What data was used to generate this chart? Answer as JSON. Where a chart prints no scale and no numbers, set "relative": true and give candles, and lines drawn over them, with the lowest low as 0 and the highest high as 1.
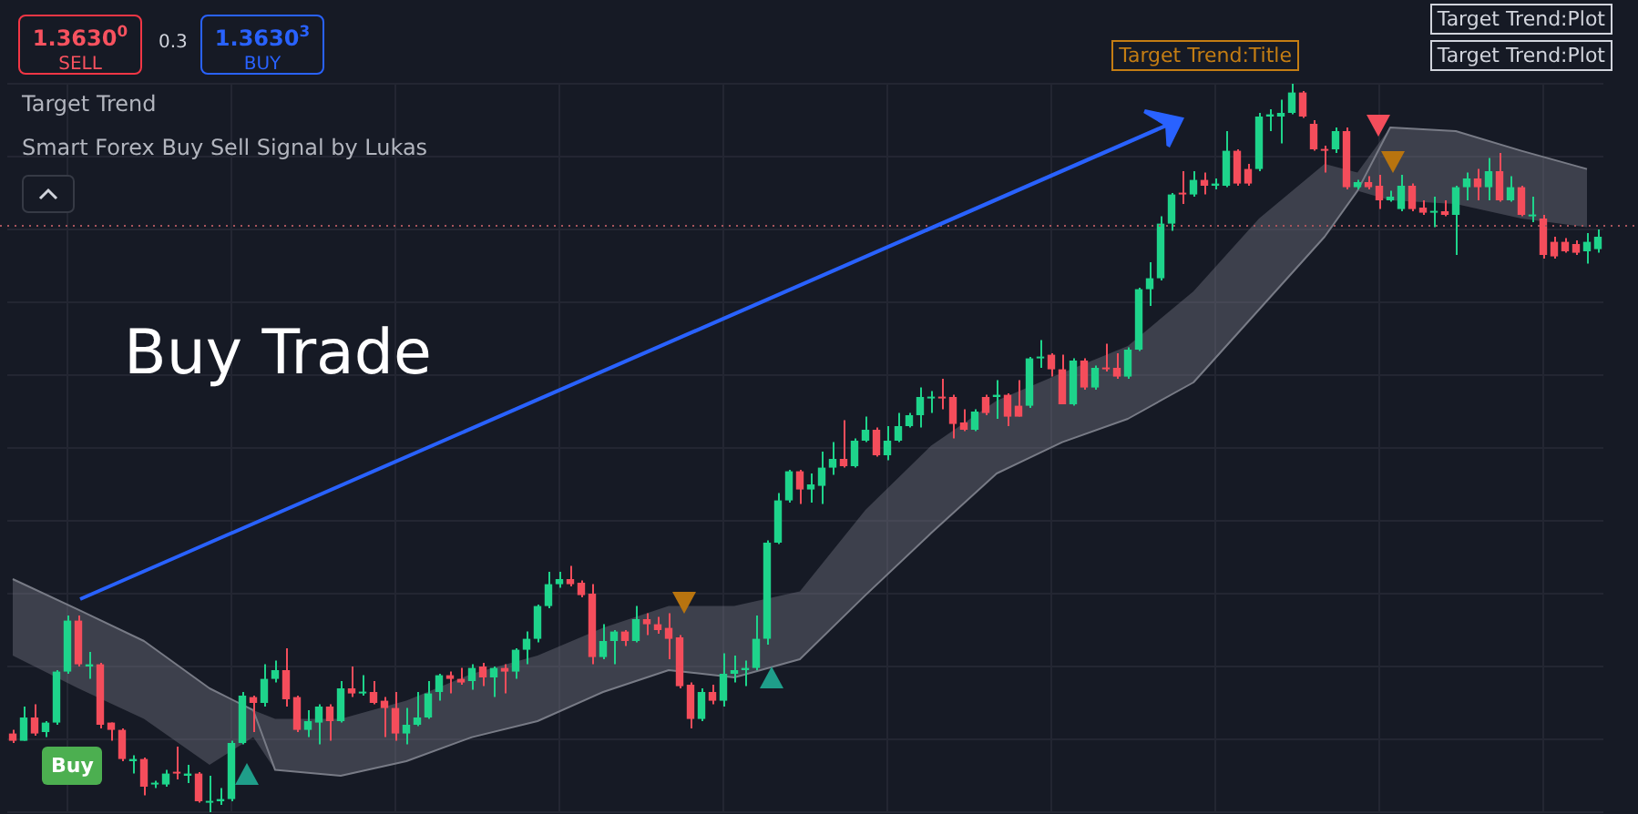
{
  "chart_data": {
    "type": "candlestick",
    "relative": true,
    "grid": true,
    "tick_labels": false,
    "categories": [
      null,
      null,
      null,
      null,
      null,
      null,
      null,
      null,
      null,
      null,
      null,
      null,
      null,
      null,
      null,
      null,
      null,
      null,
      null,
      null,
      null,
      null,
      null,
      null,
      null,
      null,
      null,
      null,
      null,
      null,
      null,
      null,
      null,
      null,
      null,
      null,
      null,
      null,
      null,
      null,
      null,
      null,
      null,
      null,
      null,
      null,
      null,
      null,
      null,
      null,
      null,
      null,
      null,
      null,
      null,
      null,
      null,
      null,
      null,
      null,
      null,
      null,
      null,
      null,
      null,
      null,
      null,
      null,
      null,
      null,
      null,
      null,
      null,
      null,
      null,
      null,
      null,
      null,
      null,
      null,
      null,
      null,
      null,
      null,
      null,
      null,
      null,
      null,
      null,
      null,
      null,
      null,
      null,
      null,
      null,
      null,
      null,
      null,
      null,
      null,
      null,
      null,
      null,
      null,
      null,
      null,
      null,
      null,
      null,
      null,
      null,
      null,
      null,
      null,
      null,
      null,
      null,
      null,
      null,
      null,
      null,
      null,
      null,
      null,
      null,
      null,
      null,
      null,
      null,
      null,
      null,
      null,
      null,
      null,
      null,
      null,
      null,
      null,
      null,
      null,
      null,
      null,
      null,
      null,
      null,
      null
    ],
    "ohlc": [
      [
        0.108,
        0.113,
        0.095,
        0.098
      ],
      [
        0.098,
        0.145,
        0.098,
        0.13
      ],
      [
        0.13,
        0.148,
        0.105,
        0.108
      ],
      [
        0.11,
        0.125,
        0.103,
        0.123
      ],
      [
        0.123,
        0.195,
        0.12,
        0.193
      ],
      [
        0.193,
        0.27,
        0.19,
        0.263
      ],
      [
        0.263,
        0.27,
        0.2,
        0.203
      ],
      [
        0.2,
        0.22,
        0.183,
        0.203
      ],
      [
        0.203,
        0.205,
        0.115,
        0.12
      ],
      [
        0.123,
        0.123,
        0.098,
        0.113
      ],
      [
        0.113,
        0.115,
        0.07,
        0.073
      ],
      [
        0.07,
        0.078,
        0.053,
        0.073
      ],
      [
        0.073,
        0.075,
        0.023,
        0.035
      ],
      [
        0.038,
        0.043,
        0.033,
        0.04
      ],
      [
        0.038,
        0.058,
        0.035,
        0.053
      ],
      [
        0.055,
        0.09,
        0.045,
        0.053
      ],
      [
        0.05,
        0.065,
        0.04,
        0.053
      ],
      [
        0.053,
        0.055,
        0.013,
        0.015
      ],
      [
        0.013,
        0.05,
        0,
        0.015
      ],
      [
        0.015,
        0.033,
        0.01,
        0.018
      ],
      [
        0.018,
        0.098,
        0.015,
        0.095
      ],
      [
        0.095,
        0.165,
        0.093,
        0.16
      ],
      [
        0.158,
        0.16,
        0.11,
        0.15
      ],
      [
        0.15,
        0.203,
        0.145,
        0.183
      ],
      [
        0.183,
        0.208,
        0.178,
        0.195
      ],
      [
        0.195,
        0.225,
        0.145,
        0.155
      ],
      [
        0.158,
        0.16,
        0.11,
        0.113
      ],
      [
        0.113,
        0.14,
        0.103,
        0.125
      ],
      [
        0.123,
        0.148,
        0.093,
        0.145
      ],
      [
        0.145,
        0.148,
        0.098,
        0.125
      ],
      [
        0.125,
        0.18,
        0.123,
        0.17
      ],
      [
        0.17,
        0.2,
        0.158,
        0.163
      ],
      [
        0.163,
        0.188,
        0.16,
        0.165
      ],
      [
        0.165,
        0.18,
        0.148,
        0.15
      ],
      [
        0.153,
        0.158,
        0.103,
        0.143
      ],
      [
        0.143,
        0.165,
        0.098,
        0.108
      ],
      [
        0.108,
        0.143,
        0.093,
        0.12
      ],
      [
        0.12,
        0.165,
        0.118,
        0.13
      ],
      [
        0.13,
        0.18,
        0.128,
        0.163
      ],
      [
        0.165,
        0.19,
        0.153,
        0.188
      ],
      [
        0.188,
        0.193,
        0.163,
        0.183
      ],
      [
        0.183,
        0.198,
        0.175,
        0.178
      ],
      [
        0.18,
        0.203,
        0.168,
        0.198
      ],
      [
        0.2,
        0.205,
        0.173,
        0.185
      ],
      [
        0.185,
        0.2,
        0.158,
        0.198
      ],
      [
        0.198,
        0.203,
        0.163,
        0.193
      ],
      [
        0.193,
        0.225,
        0.183,
        0.223
      ],
      [
        0.223,
        0.248,
        0.203,
        0.238
      ],
      [
        0.238,
        0.285,
        0.233,
        0.283
      ],
      [
        0.283,
        0.33,
        0.28,
        0.313
      ],
      [
        0.313,
        0.33,
        0.308,
        0.32
      ],
      [
        0.32,
        0.338,
        0.31,
        0.313
      ],
      [
        0.315,
        0.318,
        0.295,
        0.298
      ],
      [
        0.3,
        0.313,
        0.203,
        0.213
      ],
      [
        0.213,
        0.258,
        0.21,
        0.235
      ],
      [
        0.235,
        0.25,
        0.203,
        0.248
      ],
      [
        0.248,
        0.25,
        0.228,
        0.235
      ],
      [
        0.235,
        0.283,
        0.233,
        0.265
      ],
      [
        0.265,
        0.273,
        0.243,
        0.258
      ],
      [
        0.258,
        0.268,
        0.245,
        0.25
      ],
      [
        0.253,
        0.273,
        0.21,
        0.238
      ],
      [
        0.24,
        0.243,
        0.17,
        0.173
      ],
      [
        0.175,
        0.178,
        0.115,
        0.128
      ],
      [
        0.128,
        0.17,
        0.125,
        0.165
      ],
      [
        0.165,
        0.175,
        0.148,
        0.153
      ],
      [
        0.153,
        0.218,
        0.145,
        0.19
      ],
      [
        0.19,
        0.215,
        0.178,
        0.195
      ],
      [
        0.195,
        0.208,
        0.173,
        0.198
      ],
      [
        0.198,
        0.27,
        0.195,
        0.238
      ],
      [
        0.238,
        0.373,
        0.23,
        0.37
      ],
      [
        0.37,
        0.438,
        0.368,
        0.428
      ],
      [
        0.428,
        0.47,
        0.425,
        0.468
      ],
      [
        0.468,
        0.47,
        0.423,
        0.443
      ],
      [
        0.443,
        0.465,
        0.425,
        0.45
      ],
      [
        0.448,
        0.495,
        0.423,
        0.473
      ],
      [
        0.473,
        0.508,
        0.463,
        0.485
      ],
      [
        0.485,
        0.538,
        0.473,
        0.475
      ],
      [
        0.475,
        0.513,
        0.473,
        0.51
      ],
      [
        0.51,
        0.543,
        0.508,
        0.525
      ],
      [
        0.525,
        0.528,
        0.488,
        0.49
      ],
      [
        0.49,
        0.53,
        0.483,
        0.51
      ],
      [
        0.51,
        0.548,
        0.508,
        0.53
      ],
      [
        0.53,
        0.548,
        0.528,
        0.545
      ],
      [
        0.545,
        0.583,
        0.528,
        0.57
      ],
      [
        0.568,
        0.578,
        0.548,
        0.57
      ],
      [
        0.57,
        0.595,
        0.553,
        0.568
      ],
      [
        0.57,
        0.573,
        0.513,
        0.533
      ],
      [
        0.535,
        0.553,
        0.523,
        0.525
      ],
      [
        0.525,
        0.553,
        0.523,
        0.55
      ],
      [
        0.57,
        0.573,
        0.545,
        0.548
      ],
      [
        0.57,
        0.593,
        0.54,
        0.573
      ],
      [
        0.573,
        0.575,
        0.53,
        0.543
      ],
      [
        0.558,
        0.593,
        0.543,
        0.543
      ],
      [
        0.558,
        0.625,
        0.555,
        0.623
      ],
      [
        0.623,
        0.648,
        0.61,
        0.625
      ],
      [
        0.628,
        0.63,
        0.598,
        0.608
      ],
      [
        0.608,
        0.628,
        0.56,
        0.56
      ],
      [
        0.56,
        0.623,
        0.558,
        0.62
      ],
      [
        0.62,
        0.623,
        0.58,
        0.583
      ],
      [
        0.583,
        0.613,
        0.58,
        0.61
      ],
      [
        0.61,
        0.643,
        0.605,
        0.608
      ],
      [
        0.61,
        0.63,
        0.595,
        0.598
      ],
      [
        0.598,
        0.638,
        0.595,
        0.635
      ],
      [
        0.635,
        0.72,
        0.633,
        0.718
      ],
      [
        0.718,
        0.755,
        0.695,
        0.733
      ],
      [
        0.733,
        0.818,
        0.73,
        0.808
      ],
      [
        0.808,
        0.85,
        0.798,
        0.848
      ],
      [
        0.85,
        0.88,
        0.835,
        0.848
      ],
      [
        0.848,
        0.88,
        0.845,
        0.868
      ],
      [
        0.868,
        0.878,
        0.848,
        0.86
      ],
      [
        0.86,
        0.87,
        0.855,
        0.863
      ],
      [
        0.86,
        0.935,
        0.858,
        0.908
      ],
      [
        0.908,
        0.91,
        0.86,
        0.863
      ],
      [
        0.883,
        0.89,
        0.86,
        0.863
      ],
      [
        0.883,
        0.96,
        0.88,
        0.955
      ],
      [
        0.955,
        0.965,
        0.935,
        0.958
      ],
      [
        0.955,
        0.978,
        0.918,
        0.96
      ],
      [
        0.96,
        1,
        0.958,
        0.988
      ],
      [
        0.988,
        0.99,
        0.953,
        0.955
      ],
      [
        0.945,
        0.95,
        0.908,
        0.91
      ],
      [
        0.91,
        0.915,
        0.878,
        0.908
      ],
      [
        0.91,
        0.94,
        0.905,
        0.935
      ],
      [
        0.935,
        0.94,
        0.855,
        0.858
      ],
      [
        0.858,
        0.868,
        0.855,
        0.865
      ],
      [
        0.865,
        0.873,
        0.855,
        0.858
      ],
      [
        0.86,
        0.875,
        0.828,
        0.84
      ],
      [
        0.84,
        0.853,
        0.838,
        0.845
      ],
      [
        0.828,
        0.875,
        0.825,
        0.86
      ],
      [
        0.86,
        0.863,
        0.825,
        0.828
      ],
      [
        0.83,
        0.84,
        0.82,
        0.823
      ],
      [
        0.823,
        0.845,
        0.803,
        0.825
      ],
      [
        0.825,
        0.84,
        0.818,
        0.82
      ],
      [
        0.82,
        0.86,
        0.765,
        0.858
      ],
      [
        0.858,
        0.878,
        0.84,
        0.87
      ],
      [
        0.87,
        0.883,
        0.84,
        0.858
      ],
      [
        0.858,
        0.898,
        0.84,
        0.88
      ],
      [
        0.88,
        0.905,
        0.838,
        0.84
      ],
      [
        0.84,
        0.873,
        0.838,
        0.858
      ],
      [
        0.858,
        0.86,
        0.818,
        0.82
      ],
      [
        0.818,
        0.845,
        0.81,
        0.82
      ],
      [
        0.815,
        0.82,
        0.76,
        0.765
      ],
      [
        0.783,
        0.79,
        0.76,
        0.763
      ],
      [
        0.783,
        0.788,
        0.768,
        0.77
      ],
      [
        0.78,
        0.785,
        0.765,
        0.768
      ],
      [
        0.77,
        0.795,
        0.753,
        0.783
      ],
      [
        0.773,
        0.8,
        0.768,
        0.79
      ]
    ],
    "colors": [
      "#f44d5b",
      "#1ed48b",
      "#f44d5b",
      "#1ed48b",
      "#1ed48b",
      "#1ed48b",
      "#f44d5b",
      "#1ed48b",
      "#f44d5b",
      "#f44d5b",
      "#f44d5b",
      "#1ed48b",
      "#f44d5b",
      "#1ed48b",
      "#1ed48b",
      "#f44d5b",
      "#1ed48b",
      "#f44d5b",
      "#1ed48b",
      "#1ed48b",
      "#1ed48b",
      "#1ed48b",
      "#f44d5b",
      "#1ed48b",
      "#1ed48b",
      "#f44d5b",
      "#f44d5b",
      "#1ed48b",
      "#1ed48b",
      "#f44d5b",
      "#1ed48b",
      "#f44d5b",
      "#1ed48b",
      "#f44d5b",
      "#f44d5b",
      "#f44d5b",
      "#1ed48b",
      "#1ed48b",
      "#1ed48b",
      "#1ed48b",
      "#f44d5b",
      "#f44d5b",
      "#1ed48b",
      "#f44d5b",
      "#1ed48b",
      "#f44d5b",
      "#1ed48b",
      "#1ed48b",
      "#1ed48b",
      "#1ed48b",
      "#1ed48b",
      "#f44d5b",
      "#f44d5b",
      "#f44d5b",
      "#1ed48b",
      "#1ed48b",
      "#f44d5b",
      "#1ed48b",
      "#f44d5b",
      "#f44d5b",
      "#f44d5b",
      "#f44d5b",
      "#f44d5b",
      "#1ed48b",
      "#f44d5b",
      "#1ed48b",
      "#1ed48b",
      "#1ed48b",
      "#1ed48b",
      "#1ed48b",
      "#1ed48b",
      "#1ed48b",
      "#f44d5b",
      "#1ed48b",
      "#1ed48b",
      "#1ed48b",
      "#f44d5b",
      "#1ed48b",
      "#1ed48b",
      "#f44d5b",
      "#1ed48b",
      "#1ed48b",
      "#1ed48b",
      "#1ed48b",
      "#1ed48b",
      "#f44d5b",
      "#f44d5b",
      "#f44d5b",
      "#1ed48b",
      "#f44d5b",
      "#1ed48b",
      "#f44d5b",
      "#f44d5b",
      "#1ed48b",
      "#1ed48b",
      "#f44d5b",
      "#f44d5b",
      "#1ed48b",
      "#f44d5b",
      "#1ed48b",
      "#f44d5b",
      "#f44d5b",
      "#1ed48b",
      "#1ed48b",
      "#1ed48b",
      "#1ed48b",
      "#1ed48b",
      "#f44d5b",
      "#1ed48b",
      "#f44d5b",
      "#1ed48b",
      "#1ed48b",
      "#f44d5b",
      "#f44d5b",
      "#1ed48b",
      "#1ed48b",
      "#1ed48b",
      "#1ed48b",
      "#f44d5b",
      "#f44d5b",
      "#f44d5b",
      "#1ed48b",
      "#f44d5b",
      "#1ed48b",
      "#f44d5b",
      "#f44d5b",
      "#1ed48b",
      "#1ed48b",
      "#f44d5b",
      "#f44d5b",
      "#1ed48b",
      "#f44d5b",
      "#1ed48b",
      "#1ed48b",
      "#f44d5b",
      "#1ed48b",
      "#f44d5b",
      "#1ed48b",
      "#f44d5b",
      "#1ed48b",
      "#f44d5b",
      "#f44d5b",
      "#f44d5b",
      "#f44d5b",
      "#1ed48b",
      "#1ed48b"
    ],
    "series": [
      {
        "type": "line",
        "color": "#787b86",
        "values": [
          0.32,
          null,
          null,
          null,
          null,
          null,
          0.278,
          null,
          null,
          null,
          null,
          null,
          0.235,
          null,
          null,
          null,
          null,
          null,
          0.17,
          null,
          null,
          null,
          0.14,
          null,
          0.058,
          null,
          null,
          null,
          null,
          null,
          0.05,
          null,
          null,
          null,
          null,
          null,
          0.07,
          null,
          null,
          null,
          null,
          null,
          0.103,
          null,
          null,
          null,
          null,
          null,
          0.125,
          null,
          null,
          null,
          null,
          null,
          0.165,
          null,
          null,
          null,
          null,
          null,
          0.195,
          null,
          null,
          null,
          null,
          null,
          0.185,
          null,
          null,
          null,
          null,
          null,
          0.21,
          null,
          null,
          null,
          null,
          null,
          0.298,
          null,
          null,
          null,
          null,
          null,
          0.383,
          null,
          null,
          null,
          null,
          null,
          0.465,
          null,
          null,
          null,
          null,
          null,
          0.508,
          null,
          null,
          null,
          null,
          null,
          0.54,
          null,
          null,
          null,
          null,
          null,
          0.59,
          null,
          null,
          null,
          null,
          null,
          0.69,
          null,
          null,
          null,
          null,
          null,
          0.79,
          null,
          null,
          0.853,
          null,
          null,
          0.94,
          null,
          null,
          null,
          null,
          null,
          0.935,
          null,
          null,
          null,
          null,
          null,
          0.908,
          null,
          null,
          null,
          null,
          null,
          0.883,
          null
        ],
        "upper": [
          0.32,
          null,
          null,
          null,
          null,
          null,
          0.278,
          null,
          null,
          null,
          null,
          null,
          0.235,
          null,
          null,
          null,
          null,
          null,
          0.17,
          null,
          null,
          null,
          0.14,
          null,
          0.128,
          null,
          null,
          null,
          null,
          null,
          0.128,
          null,
          null,
          null,
          null,
          null,
          0.153,
          null,
          null,
          null,
          null,
          null,
          0.19,
          null,
          null,
          null,
          null,
          null,
          0.215,
          null,
          null,
          null,
          null,
          null,
          0.253,
          null,
          null,
          null,
          null,
          null,
          0.283,
          null,
          null,
          null,
          null,
          null,
          0.283,
          null,
          null,
          null,
          null,
          null,
          0.303,
          null,
          null,
          null,
          null,
          null,
          0.415,
          null,
          null,
          null,
          null,
          null,
          0.503,
          null,
          null,
          null,
          null,
          null,
          0.565,
          null,
          null,
          null,
          null,
          null,
          0.603,
          null,
          null,
          null,
          null,
          null,
          0.64,
          null,
          null,
          null,
          null,
          null,
          0.715,
          null,
          null,
          null,
          null,
          null,
          0.815,
          null,
          null,
          null,
          null,
          null,
          0.89,
          null,
          null,
          0.878,
          null,
          null,
          0.94,
          null,
          null,
          null,
          null,
          null,
          0.935,
          null,
          null,
          null,
          null,
          null,
          0.908,
          null,
          null,
          null,
          null,
          null,
          0.883,
          null
        ],
        "lower": [
          0.215,
          null,
          null,
          null,
          null,
          null,
          0.17,
          null,
          null,
          null,
          null,
          null,
          0.128,
          null,
          null,
          null,
          null,
          null,
          0.065,
          null,
          null,
          null,
          0.103,
          null,
          0.058,
          null,
          null,
          null,
          null,
          null,
          0.05,
          null,
          null,
          null,
          null,
          null,
          0.07,
          null,
          null,
          null,
          null,
          null,
          0.103,
          null,
          null,
          null,
          null,
          null,
          0.125,
          null,
          null,
          null,
          null,
          null,
          0.165,
          null,
          null,
          null,
          null,
          null,
          0.195,
          null,
          null,
          null,
          null,
          null,
          0.185,
          null,
          null,
          null,
          null,
          null,
          0.21,
          null,
          null,
          null,
          null,
          null,
          0.298,
          null,
          null,
          null,
          null,
          null,
          0.383,
          null,
          null,
          null,
          null,
          null,
          0.465,
          null,
          null,
          null,
          null,
          null,
          0.508,
          null,
          null,
          null,
          null,
          null,
          0.54,
          null,
          null,
          null,
          null,
          null,
          0.59,
          null,
          null,
          null,
          null,
          null,
          0.69,
          null,
          null,
          null,
          null,
          null,
          0.79,
          null,
          null,
          0.853,
          null,
          null,
          0.84,
          null,
          null,
          null,
          null,
          null,
          0.835,
          null,
          null,
          null,
          null,
          null,
          0.815,
          null,
          null,
          null,
          null,
          null,
          0.803,
          null
        ]
      }
    ],
    "ref_lines": [
      {
        "axis": "y",
        "value": 0.805,
        "color": "#a8545c",
        "line_style": "dotted"
      }
    ],
    "annotations": [
      "Target Trend",
      "Smart Forex Buy Sell Signal by Lukas",
      "Buy Trade",
      "Target Trend:Plot",
      "Target Trend:Plot",
      "Target Trend:Title",
      "1.3630$^{0}$",
      "SELL",
      "0.3",
      "1.3630$^{3}$",
      "BUY",
      "Buy"
    ]
  }
}
